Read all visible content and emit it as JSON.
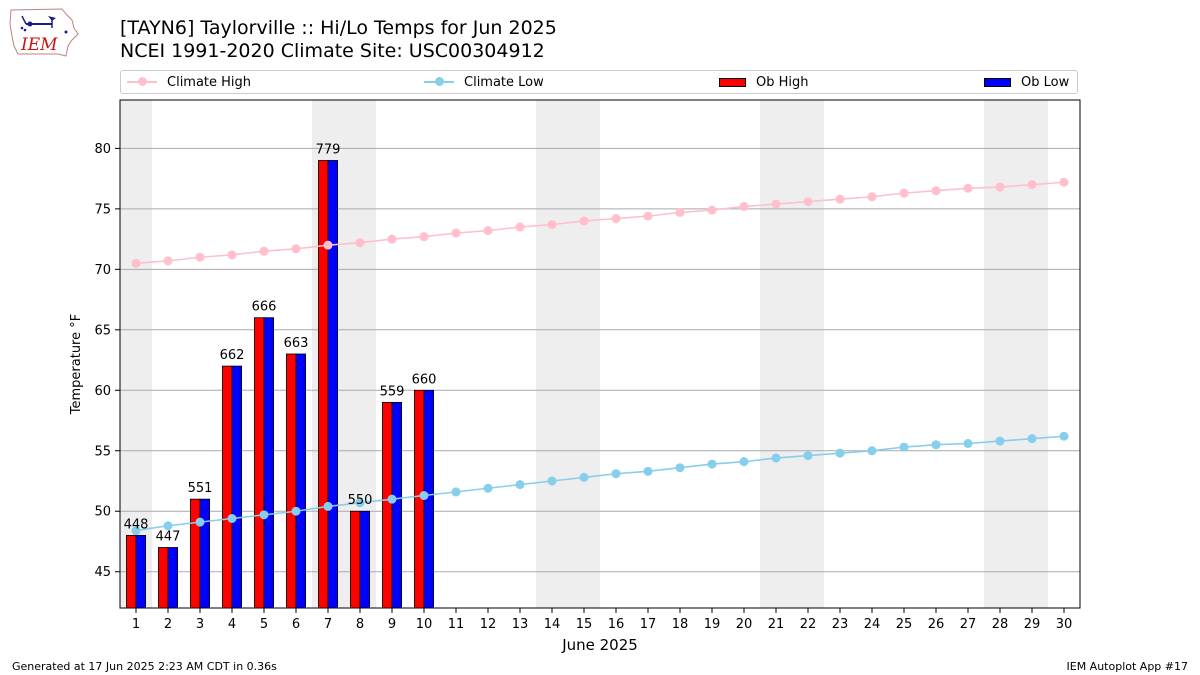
{
  "header": {
    "logo_text": "IEM",
    "title_line1": "[TAYN6] Taylorville :: Hi/Lo Temps for Jun 2025",
    "title_line2": "NCEI 1991-2020 Climate Site: USC00304912"
  },
  "legend": {
    "climate_high": "Climate High",
    "climate_low": "Climate Low",
    "ob_high": "Ob High",
    "ob_low": "Ob Low"
  },
  "colors": {
    "climate_high": "#ffc0cb",
    "climate_low": "#87ceeb",
    "ob_high": "#ff0000",
    "ob_low": "#0000ff",
    "weekend_band": "#eeeeee",
    "grid": "#aaaaaa"
  },
  "chart_data": {
    "type": "bar",
    "xlabel": "June 2025",
    "ylabel": "Temperature °F",
    "xlim": [
      0.5,
      30.5
    ],
    "ylim": [
      42,
      84
    ],
    "yticks": [
      45,
      50,
      55,
      60,
      65,
      70,
      75,
      80
    ],
    "days": [
      1,
      2,
      3,
      4,
      5,
      6,
      7,
      8,
      9,
      10,
      11,
      12,
      13,
      14,
      15,
      16,
      17,
      18,
      19,
      20,
      21,
      22,
      23,
      24,
      25,
      26,
      27,
      28,
      29,
      30
    ],
    "weekend_days": [
      1,
      7,
      8,
      14,
      15,
      21,
      22,
      28,
      29
    ],
    "grid": true,
    "legend_position": "top",
    "series": [
      {
        "name": "Ob High",
        "kind": "bar",
        "values": [
          48,
          47,
          51,
          62,
          66,
          63,
          79,
          50,
          59,
          60
        ]
      },
      {
        "name": "Ob Low",
        "kind": "bar",
        "values": [
          48,
          47,
          51,
          62,
          66,
          63,
          79,
          50,
          59,
          60
        ]
      },
      {
        "name": "Climate High",
        "kind": "line",
        "values": [
          70.5,
          70.7,
          71.0,
          71.2,
          71.5,
          71.7,
          72.0,
          72.2,
          72.5,
          72.7,
          73.0,
          73.2,
          73.5,
          73.7,
          74.0,
          74.2,
          74.4,
          74.7,
          74.9,
          75.2,
          75.4,
          75.6,
          75.8,
          76.0,
          76.3,
          76.5,
          76.7,
          76.8,
          77.0,
          77.2
        ]
      },
      {
        "name": "Climate Low",
        "kind": "line",
        "values": [
          48.4,
          48.8,
          49.1,
          49.4,
          49.7,
          50.0,
          50.4,
          50.7,
          51.0,
          51.3,
          51.6,
          51.9,
          52.2,
          52.5,
          52.8,
          53.1,
          53.3,
          53.6,
          53.9,
          54.1,
          54.4,
          54.6,
          54.8,
          55.0,
          55.3,
          55.5,
          55.6,
          55.8,
          56.0,
          56.2
        ]
      }
    ],
    "bar_labels": [
      "448",
      "447",
      "551",
      "662",
      "666",
      "663",
      "779",
      "550",
      "559",
      "660"
    ]
  },
  "footer": {
    "left": "Generated at 17 Jun 2025 2:23 AM CDT in 0.36s",
    "right": "IEM Autoplot App #17"
  }
}
